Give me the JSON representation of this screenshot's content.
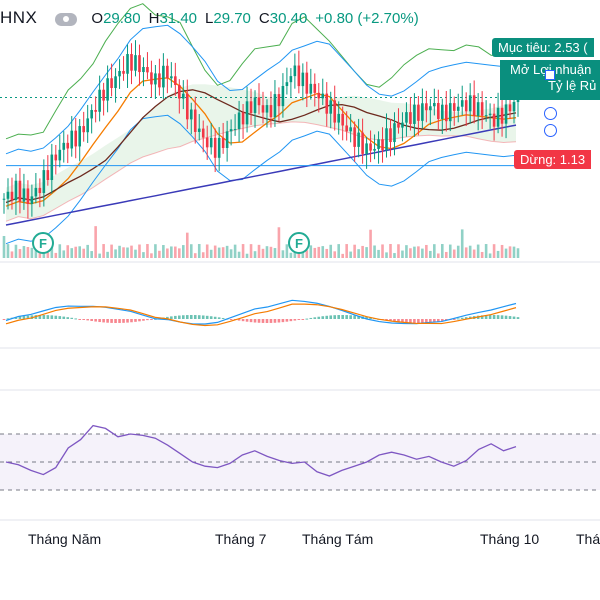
{
  "header": {
    "symbol": "HNX",
    "open_label": "O",
    "open": "29.80",
    "high_label": "H",
    "high": "31.40",
    "low_label": "L",
    "low": "29.70",
    "close_label": "C",
    "close": "30.40",
    "change": "+0.80 (+2.70%)"
  },
  "tags": {
    "target": "Mục tiêu: 2.53 (",
    "profit_line1": "Mở Lợi nhuận",
    "profit_line2": "Tỷ lệ Rủ",
    "stop": "Dừng: 1.13"
  },
  "earnings_marker": "F",
  "colors": {
    "up": "#089981",
    "down": "#f23645",
    "bb": "#2196f3",
    "ema_orange": "#f57c00",
    "ema_brown": "#6d2a1e",
    "ma_navy": "#3a3ab8",
    "ichimoku_green": "#4caf50",
    "rsi": "#7e57c2",
    "macd_signal": "#f57c00"
  },
  "chart_data": {
    "type": "candlestick",
    "x_axis_labels": [
      "Tháng Năm",
      "Tháng 7",
      "Tháng Tám",
      "Tháng 10",
      "Thá"
    ],
    "last_bar": {
      "open": 29.8,
      "high": 31.4,
      "low": 29.7,
      "close": 30.4,
      "change": 0.8,
      "change_pct": 2.7
    },
    "indicators": [
      "Bollinger Bands",
      "EMA",
      "MA",
      "Ichimoku Cloud",
      "Volume",
      "MACD",
      "RSI"
    ],
    "price_series": [
      25,
      25.5,
      24.9,
      25.8,
      27.2,
      28.0,
      28.4,
      29.6,
      30.8,
      31.5,
      32.4,
      32.0,
      31.2,
      31.8,
      30.6,
      29.2,
      28.1,
      27.6,
      28.6,
      29.4,
      30.2,
      29.6,
      30.4,
      31.9,
      31.1,
      30.6,
      29.8,
      29.0,
      28.2,
      27.6,
      27.9,
      28.6,
      29.3,
      29.6,
      30.0,
      29.5,
      29.9,
      30.1,
      29.7,
      29.2,
      29.6,
      30.4
    ],
    "rsi_series": [
      50,
      48,
      44,
      41,
      46,
      60,
      66,
      76,
      74,
      68,
      70,
      69,
      67,
      62,
      56,
      50,
      47,
      46,
      49,
      55,
      58,
      54,
      51,
      49,
      50,
      43,
      40,
      44,
      47,
      50,
      55,
      57,
      55,
      52,
      54,
      50,
      47,
      51,
      59,
      63,
      58,
      61
    ],
    "rsi_levels": [
      30,
      50,
      70
    ],
    "trade_levels": {
      "target": 2.53,
      "stop": 1.13
    }
  }
}
